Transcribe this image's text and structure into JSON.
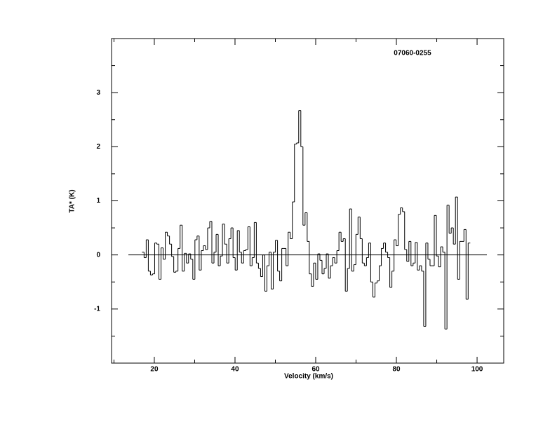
{
  "chart_data": {
    "type": "step",
    "title": "07060-0255",
    "x_label": "Velocity (km/s)",
    "y_label": "TA* (K)",
    "xlim": [
      9.4,
      106.6
    ],
    "ylim": [
      -2,
      4
    ],
    "xticks": [
      20,
      40,
      60,
      80,
      100
    ],
    "xminorticks": [
      10,
      30,
      50,
      70,
      90
    ],
    "yticks": [
      -1,
      0,
      1,
      2,
      3
    ],
    "yminorticks": [
      -1.5,
      -0.5,
      0.5,
      1.5,
      2.5,
      3.5
    ],
    "color": "#000000",
    "x": [
      17.2,
      17.725,
      18.25,
      18.775,
      19.3,
      19.825,
      20.35,
      20.875,
      21.4,
      21.925,
      22.45,
      22.975,
      23.5,
      24.025,
      24.55,
      25.075,
      25.6,
      26.125,
      26.65,
      27.175,
      27.7,
      28.225,
      28.75,
      29.275,
      29.8,
      30.325,
      30.85,
      31.375,
      31.9,
      32.425,
      32.95,
      33.475,
      34.0,
      34.525,
      35.05,
      35.575,
      36.1,
      36.625,
      37.15,
      37.675,
      38.2,
      38.725,
      39.25,
      39.775,
      40.3,
      40.825,
      41.35,
      41.875,
      42.4,
      42.925,
      43.45,
      43.975,
      44.5,
      45.025,
      45.55,
      46.075,
      46.6,
      47.125,
      47.65,
      48.175,
      48.7,
      49.225,
      49.75,
      50.275,
      50.8,
      51.325,
      51.85,
      52.375,
      52.9,
      53.425,
      53.95,
      54.475,
      55.0,
      55.525,
      56.05,
      56.575,
      57.1,
      57.625,
      58.15,
      58.675,
      59.2,
      59.725,
      60.25,
      60.775,
      61.3,
      61.825,
      62.35,
      62.875,
      63.4,
      63.925,
      64.45,
      64.975,
      65.5,
      66.025,
      66.55,
      67.075,
      67.6,
      68.125,
      68.65,
      69.175,
      69.7,
      70.225,
      70.75,
      71.275,
      71.8,
      72.325,
      72.85,
      73.375,
      73.9,
      74.425,
      74.95,
      75.475,
      76.0,
      76.525,
      77.05,
      77.575,
      78.1,
      78.625,
      79.15,
      79.675,
      80.2,
      80.725,
      81.25,
      81.775,
      82.3,
      82.825,
      83.35,
      83.875,
      84.4,
      84.925,
      85.45,
      85.975,
      86.5,
      87.025,
      87.55,
      88.075,
      88.6,
      89.125,
      89.65,
      90.175,
      90.7,
      91.225,
      91.75,
      92.275,
      92.8,
      93.325,
      93.85,
      94.375,
      94.9,
      95.425,
      95.95,
      96.475,
      97.0,
      97.525,
      98.05
    ],
    "values": [
      0.05,
      -0.05,
      0.28,
      -0.3,
      -0.37,
      -0.35,
      0.22,
      0.2,
      -0.45,
      0.13,
      -0.08,
      0.42,
      0.35,
      0.2,
      -0.03,
      -0.32,
      -0.3,
      0.12,
      0.55,
      -0.3,
      0.03,
      -0.15,
      0.02,
      -0.08,
      -0.45,
      0.28,
      0.35,
      -0.28,
      0.08,
      0.17,
      0.1,
      0.5,
      0.62,
      -0.15,
      0.05,
      0.38,
      -0.2,
      -0.02,
      0.57,
      0.2,
      -0.15,
      0.3,
      0.5,
      -0.05,
      -0.28,
      0.45,
      0.05,
      -0.15,
      0.08,
      0.1,
      0.52,
      -0.2,
      -0.05,
      0.6,
      -0.15,
      -0.25,
      -0.4,
      0.0,
      -0.67,
      -0.2,
      0.05,
      -0.63,
      0.05,
      0.27,
      -0.3,
      -0.48,
      0.12,
      0.12,
      -0.2,
      0.42,
      0.3,
      0.98,
      2.05,
      2.07,
      2.67,
      2.0,
      0.55,
      0.78,
      0.25,
      -0.35,
      -0.58,
      -0.15,
      -0.45,
      0.02,
      -0.1,
      -0.35,
      -0.25,
      0.02,
      -0.43,
      -0.2,
      -0.05,
      -0.15,
      0.08,
      0.42,
      0.25,
      0.3,
      -0.67,
      -0.25,
      0.85,
      -0.3,
      -0.18,
      0.38,
      0.7,
      0.3,
      -0.15,
      -0.2,
      -0.05,
      0.22,
      -0.5,
      -0.78,
      -0.52,
      -0.48,
      -0.2,
      0.12,
      0.22,
      0.05,
      -0.05,
      -0.6,
      -0.3,
      0.28,
      0.17,
      0.75,
      0.87,
      0.8,
      0.1,
      -0.12,
      0.25,
      -0.2,
      -0.15,
      0.23,
      -0.28,
      -0.2,
      -0.3,
      -1.32,
      0.22,
      -0.08,
      -0.2,
      -0.2,
      0.73,
      -0.02,
      -0.22,
      0.15,
      0.05,
      -1.37,
      0.92,
      0.4,
      0.5,
      0.2,
      1.07,
      -0.45,
      0.25,
      0.25,
      0.47,
      -0.82,
      0.22
    ]
  }
}
